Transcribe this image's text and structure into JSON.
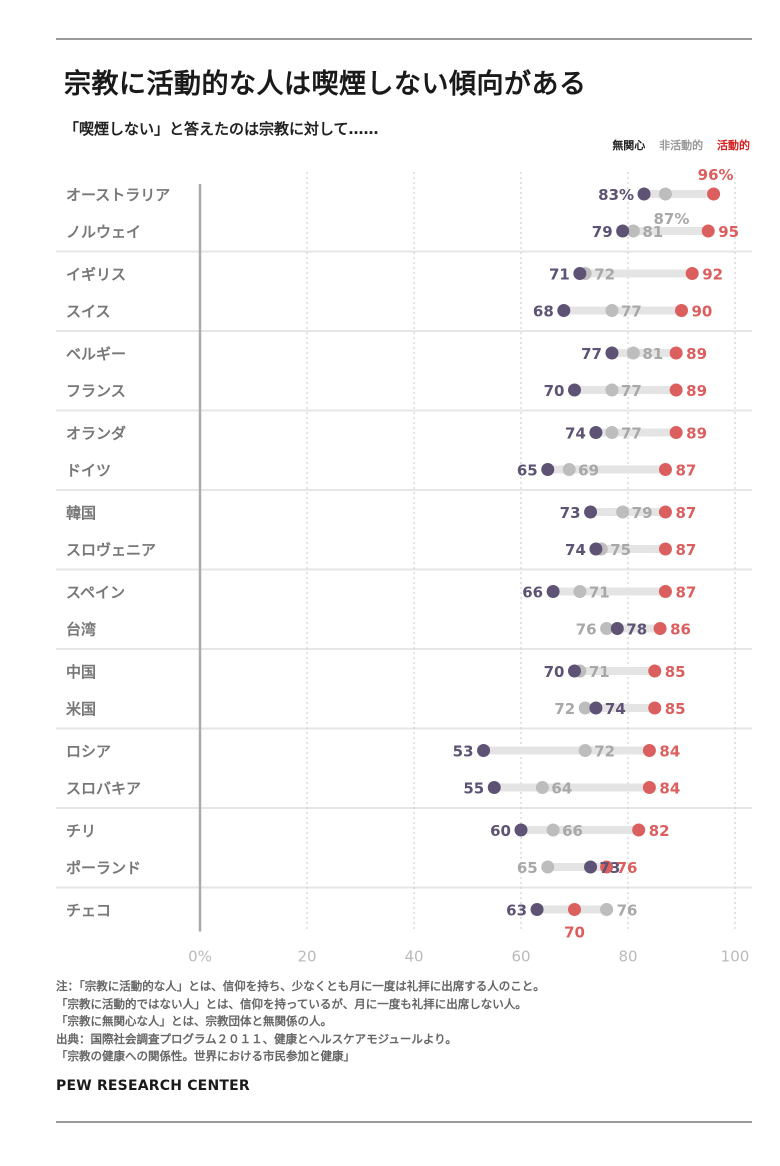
{
  "title": "宗教に活動的な人は喫煙しない傾向がある",
  "subtitle": "「喫煙しない」と答えたのは宗教に対して……",
  "legend": {
    "unaffiliated": "無関心",
    "inactive": "非活動的",
    "active": "活動的"
  },
  "colors": {
    "unaffiliated": "#5e5375",
    "inactive": "#bdbdbd",
    "active": "#dc5f5f",
    "track": "#e4e4e4",
    "band": "#e6e6e6",
    "axis": "#aaaaaa"
  },
  "chart_data": {
    "type": "scatter",
    "title": "宗教に活動的な人は喫煙しない傾向がある",
    "xlim": [
      0,
      100
    ],
    "x_ticks": [
      "0%",
      "20",
      "40",
      "60",
      "80",
      "100"
    ],
    "grid": "vertical dotted",
    "legend_position": "top-right",
    "categories": [
      "オーストラリア",
      "ノルウェイ",
      "イギリス",
      "スイス",
      "ベルギー",
      "フランス",
      "オランダ",
      "ドイツ",
      "韓国",
      "スロヴェニア",
      "スペイン",
      "台湾",
      "中国",
      "米国",
      "ロシア",
      "スロバキア",
      "チリ",
      "ポーランド",
      "チェコ"
    ],
    "series": [
      {
        "name": "無関心",
        "values": [
          83,
          79,
          71,
          68,
          77,
          70,
          74,
          65,
          73,
          74,
          66,
          78,
          70,
          74,
          53,
          55,
          60,
          73,
          63
        ]
      },
      {
        "name": "非活動的",
        "values": [
          87,
          81,
          72,
          77,
          81,
          77,
          77,
          69,
          79,
          75,
          71,
          76,
          71,
          72,
          72,
          64,
          66,
          65,
          76
        ]
      },
      {
        "name": "活動的",
        "values": [
          96,
          95,
          92,
          90,
          89,
          89,
          89,
          87,
          87,
          87,
          87,
          86,
          85,
          85,
          84,
          84,
          82,
          76,
          70
        ]
      }
    ],
    "value_labels": {
      "unaffiliated": [
        "83%",
        "79",
        "71",
        "68",
        "77",
        "70",
        "74",
        "65",
        "73",
        "74",
        "66",
        "78",
        "70",
        "74",
        "53",
        "55",
        "60",
        "73",
        "63"
      ],
      "inactive": [
        "87%",
        "81",
        "72",
        "77",
        "81",
        "77",
        "77",
        "69",
        "79",
        "75",
        "71",
        "76",
        "71",
        "72",
        "72",
        "64",
        "66",
        "65",
        "76"
      ],
      "active": [
        "96%",
        "95",
        "92",
        "90",
        "89",
        "89",
        "89",
        "87",
        "87",
        "87",
        "87",
        "86",
        "85",
        "85",
        "84",
        "84",
        "82",
        "76",
        "70"
      ]
    }
  },
  "notes": [
    "注：「宗教に活動的な人」とは、信仰を持ち、少なくとも月に一度は礼拝に出席する人のこと。",
    "「宗教に活動的ではない人」とは、信仰を持っているが、月に一度も礼拝に出席しない人。",
    "「宗教に無関心な人」とは、宗教団体と無関係の人。",
    "出典：国際社会調査プログラム２０１１、健康とヘルスケアモジュールより。",
    "「宗教の健康への関係性。世界における市民参加と健康」"
  ],
  "source": "PEW RESEARCH CENTER"
}
